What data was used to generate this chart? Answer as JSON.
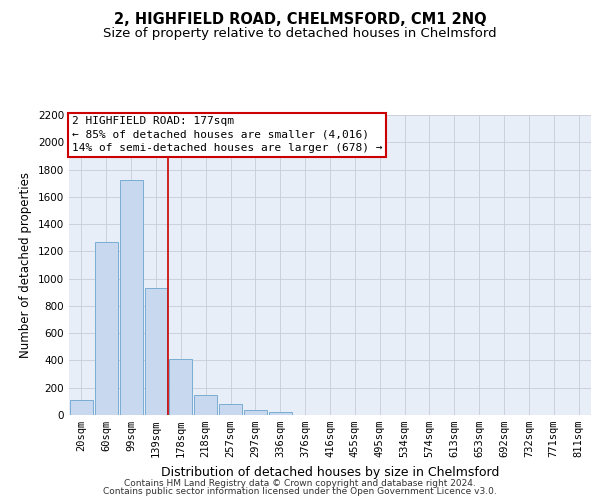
{
  "title": "2, HIGHFIELD ROAD, CHELMSFORD, CM1 2NQ",
  "subtitle": "Size of property relative to detached houses in Chelmsford",
  "xlabel": "Distribution of detached houses by size in Chelmsford",
  "ylabel": "Number of detached properties",
  "categories": [
    "20sqm",
    "60sqm",
    "99sqm",
    "139sqm",
    "178sqm",
    "218sqm",
    "257sqm",
    "297sqm",
    "336sqm",
    "376sqm",
    "416sqm",
    "455sqm",
    "495sqm",
    "534sqm",
    "574sqm",
    "613sqm",
    "653sqm",
    "692sqm",
    "732sqm",
    "771sqm",
    "811sqm"
  ],
  "values": [
    110,
    1270,
    1720,
    935,
    410,
    150,
    80,
    40,
    25,
    0,
    0,
    0,
    0,
    0,
    0,
    0,
    0,
    0,
    0,
    0,
    0
  ],
  "bar_color": "#c8d8ee",
  "bar_edge_color": "#7aadd4",
  "plot_bg_color": "#e8eef8",
  "background_color": "#ffffff",
  "grid_color": "#c8ccd8",
  "property_line_color": "#cc0000",
  "property_bar_index": 4,
  "annotation_line1": "2 HIGHFIELD ROAD: 177sqm",
  "annotation_line2": "← 85% of detached houses are smaller (4,016)",
  "annotation_line3": "14% of semi-detached houses are larger (678) →",
  "annotation_box_color": "#cc0000",
  "ylim": [
    0,
    2200
  ],
  "yticks": [
    0,
    200,
    400,
    600,
    800,
    1000,
    1200,
    1400,
    1600,
    1800,
    2000,
    2200
  ],
  "footer_line1": "Contains HM Land Registry data © Crown copyright and database right 2024.",
  "footer_line2": "Contains public sector information licensed under the Open Government Licence v3.0.",
  "title_fontsize": 10.5,
  "subtitle_fontsize": 9.5,
  "xlabel_fontsize": 9,
  "ylabel_fontsize": 8.5,
  "tick_fontsize": 7.5,
  "annotation_fontsize": 8,
  "footer_fontsize": 6.5
}
